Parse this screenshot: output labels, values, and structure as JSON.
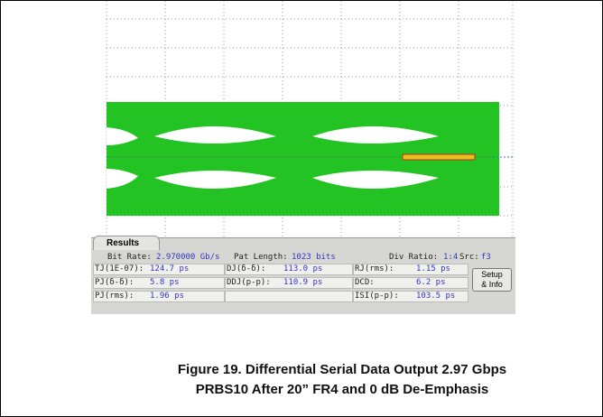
{
  "results": {
    "tab": "Results",
    "header": [
      {
        "label": "Bit Rate:",
        "value": "2.970000 Gb/s"
      },
      {
        "label": "Pat Length:",
        "value": "1023 bits"
      },
      {
        "label": "Div Ratio:",
        "value": "1:4"
      },
      {
        "label": "Src:",
        "value": "f3"
      }
    ],
    "rows": [
      [
        {
          "label": "TJ(1E-07):",
          "value": "124.7 ps"
        },
        {
          "label": "DJ(δ-δ):",
          "value": "113.0 ps"
        },
        {
          "label": "RJ(rms):",
          "value": "1.15 ps"
        }
      ],
      [
        {
          "label": "PJ(δ-δ):",
          "value": "5.8 ps"
        },
        {
          "label": "DDJ(p-p):",
          "value": "110.9 ps"
        },
        {
          "label": "DCD:",
          "value": "6.2 ps"
        }
      ],
      [
        {
          "label": "PJ(rms):",
          "value": "1.96 ps"
        },
        null,
        {
          "label": "ISI(p-p):",
          "value": "103.5 ps"
        }
      ]
    ],
    "button": [
      "Setup",
      "& Info"
    ]
  },
  "caption": [
    "Figure 19. Differential Serial Data Output 2.97 Gbps",
    "PRBS10 After 20” FR4 and 0 dB De-Emphasis"
  ]
}
